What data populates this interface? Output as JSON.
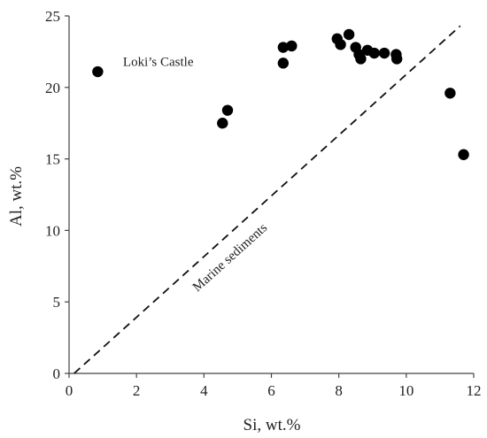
{
  "chart_data": {
    "type": "scatter",
    "xlabel": "Si, wt.%",
    "ylabel": "Al, wt.%",
    "xlim": [
      0,
      12
    ],
    "ylim": [
      0,
      25
    ],
    "x_ticks": [
      "0",
      "2",
      "4",
      "6",
      "8",
      "10",
      "12"
    ],
    "y_ticks": [
      "0",
      "5",
      "10",
      "15",
      "20",
      "25"
    ],
    "grid": false,
    "series": [
      {
        "marker": "filled-circle",
        "color": "#000000",
        "points": [
          {
            "x": 0.85,
            "y": 21.1
          },
          {
            "x": 4.55,
            "y": 17.5
          },
          {
            "x": 4.7,
            "y": 18.4
          },
          {
            "x": 6.35,
            "y": 21.7
          },
          {
            "x": 6.35,
            "y": 22.8
          },
          {
            "x": 6.6,
            "y": 22.9
          },
          {
            "x": 7.95,
            "y": 23.4
          },
          {
            "x": 8.05,
            "y": 23.0
          },
          {
            "x": 8.3,
            "y": 23.7
          },
          {
            "x": 8.5,
            "y": 22.8
          },
          {
            "x": 8.6,
            "y": 22.3
          },
          {
            "x": 8.65,
            "y": 22.0
          },
          {
            "x": 8.85,
            "y": 22.6
          },
          {
            "x": 9.05,
            "y": 22.4
          },
          {
            "x": 9.35,
            "y": 22.4
          },
          {
            "x": 9.7,
            "y": 22.3
          },
          {
            "x": 9.72,
            "y": 22.0
          },
          {
            "x": 11.3,
            "y": 19.6
          },
          {
            "x": 11.7,
            "y": 15.3
          }
        ]
      }
    ],
    "reference_line": {
      "label": "Marine sediments",
      "style": "dashed",
      "from": {
        "x": 0.15,
        "y": 0
      },
      "to": {
        "x": 11.6,
        "y": 24.3
      }
    },
    "annotations": [
      {
        "text": "Loki’s Castle",
        "x": 1.6,
        "y": 21.8
      }
    ]
  }
}
